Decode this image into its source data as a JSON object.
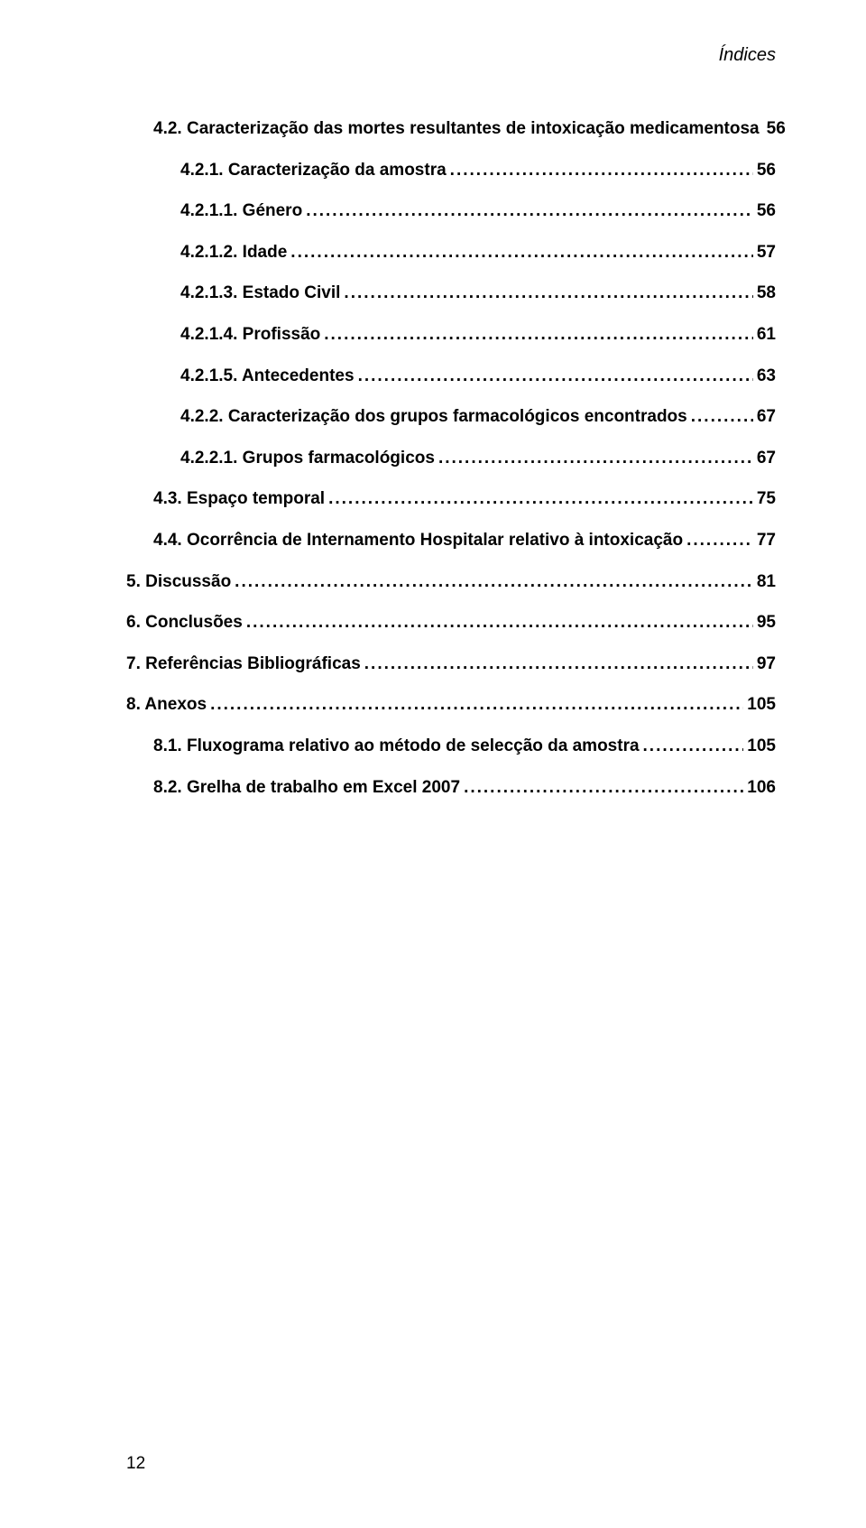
{
  "running_head": "Índices",
  "page_number": "12",
  "toc": [
    {
      "indent": 1,
      "label": "4.2. Caracterização das mortes resultantes de intoxicação medicamentosa",
      "page": "56"
    },
    {
      "indent": 2,
      "label": "4.2.1. Caracterização da amostra",
      "page": "56"
    },
    {
      "indent": 2,
      "label": "4.2.1.1. Género",
      "page": "56"
    },
    {
      "indent": 2,
      "label": "4.2.1.2. Idade",
      "page": "57"
    },
    {
      "indent": 2,
      "label": "4.2.1.3. Estado Civil",
      "page": "58"
    },
    {
      "indent": 2,
      "label": "4.2.1.4. Profissão",
      "page": "61"
    },
    {
      "indent": 2,
      "label": "4.2.1.5. Antecedentes",
      "page": "63"
    },
    {
      "indent": 2,
      "label": "4.2.2. Caracterização dos grupos farmacológicos encontrados",
      "page": "67"
    },
    {
      "indent": 2,
      "label": "4.2.2.1. Grupos farmacológicos",
      "page": "67"
    },
    {
      "indent": 1,
      "label": "4.3. Espaço temporal",
      "page": "75"
    },
    {
      "indent": 1,
      "label": "4.4. Ocorrência de Internamento Hospitalar relativo à intoxicação",
      "page": "77"
    },
    {
      "indent": 0,
      "label": "5. Discussão",
      "page": "81"
    },
    {
      "indent": 0,
      "label": "6. Conclusões",
      "page": "95"
    },
    {
      "indent": 0,
      "label": "7. Referências Bibliográficas",
      "page": "97"
    },
    {
      "indent": 0,
      "label": "8. Anexos",
      "page": "105"
    },
    {
      "indent": 1,
      "label": "8.1. Fluxograma relativo ao método de selecção da amostra",
      "page": "105"
    },
    {
      "indent": 1,
      "label": "8.2. Grelha de trabalho em Excel 2007",
      "page": "106"
    }
  ]
}
